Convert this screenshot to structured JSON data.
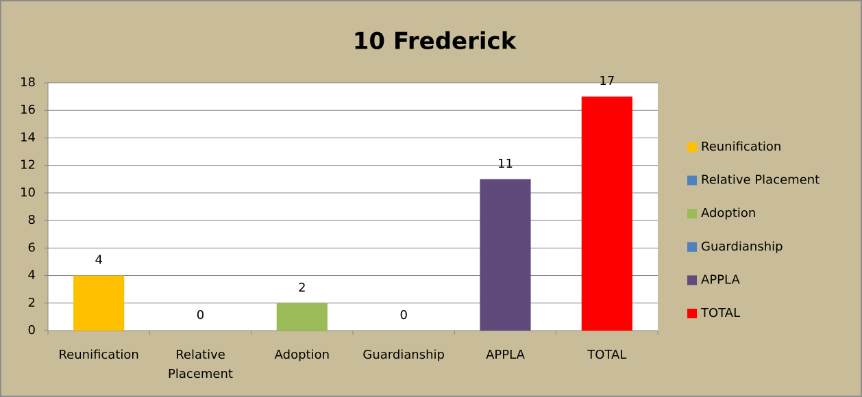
{
  "chart_data": {
    "type": "bar",
    "title": "10 Frederick",
    "categories": [
      "Reunification",
      "Relative Placement",
      "Adoption",
      "Guardianship",
      "APPLA",
      "TOTAL"
    ],
    "values": [
      4,
      0,
      2,
      0,
      11,
      17
    ],
    "colors": [
      "#ffc000",
      "#4f81bd",
      "#9bbb59",
      "#4f81bd",
      "#604a7b",
      "#ff0000"
    ],
    "ylim": [
      0,
      18
    ],
    "yticks": [
      0,
      2,
      4,
      6,
      8,
      10,
      12,
      14,
      16,
      18
    ],
    "grid": true,
    "legend": "right"
  }
}
